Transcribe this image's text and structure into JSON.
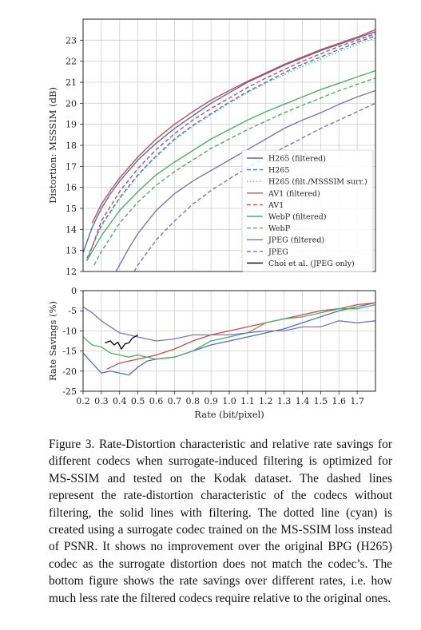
{
  "colors": {
    "H265": "#4c72b0",
    "H265 surr": "#64b5cd",
    "AV1": "#c44e52",
    "WebP": "#55a868",
    "JPEG": "#8172b2",
    "Choi": "#000000"
  },
  "chart_data": [
    {
      "type": "line",
      "ylabel": "Distortion: MSSSIM (dB)",
      "xlim": [
        0.2,
        1.8
      ],
      "ylim": [
        12,
        24
      ],
      "xticks": [
        "0.2",
        "0.3",
        "0.4",
        "0.5",
        "0.6",
        "0.7",
        "0.8",
        "0.9",
        "1.0",
        "1.1",
        "1.2",
        "1.3",
        "1.4",
        "1.5",
        "1.6",
        "1.7"
      ],
      "yticks": [
        "12",
        "13",
        "14",
        "15",
        "16",
        "17",
        "18",
        "19",
        "20",
        "21",
        "22",
        "23"
      ],
      "grid": true,
      "legend_position": "lower-right",
      "series": [
        {
          "name": "H265 (filtered)",
          "codec": "H265",
          "style": "solid",
          "x": [
            0.2,
            0.25,
            0.3,
            0.35,
            0.4,
            0.5,
            0.6,
            0.7,
            0.8,
            0.9,
            1.0,
            1.1,
            1.2,
            1.3,
            1.4,
            1.5,
            1.6,
            1.7,
            1.8
          ],
          "y": [
            12.9,
            14.1,
            15.0,
            15.7,
            16.3,
            17.3,
            18.1,
            18.8,
            19.4,
            20.0,
            20.5,
            21.0,
            21.4,
            21.8,
            22.15,
            22.5,
            22.8,
            23.1,
            23.4
          ]
        },
        {
          "name": "H265",
          "codec": "H265",
          "style": "dashed",
          "x": [
            0.22,
            0.3,
            0.4,
            0.5,
            0.6,
            0.7,
            0.8,
            0.9,
            1.0,
            1.1,
            1.2,
            1.3,
            1.4,
            1.5,
            1.6,
            1.7,
            1.8
          ],
          "y": [
            12.6,
            14.2,
            15.5,
            16.6,
            17.5,
            18.3,
            18.95,
            19.5,
            20.05,
            20.55,
            21.0,
            21.45,
            21.85,
            22.2,
            22.55,
            22.9,
            23.2
          ]
        },
        {
          "name": "H265 (filt./MSSSIM surr.)",
          "codec": "H265 surr",
          "style": "dotted",
          "x": [
            0.22,
            0.3,
            0.4,
            0.5,
            0.6,
            0.7,
            0.8,
            0.9,
            1.0,
            1.1,
            1.2,
            1.3,
            1.4,
            1.5,
            1.6,
            1.7,
            1.8
          ],
          "y": [
            12.6,
            14.15,
            15.45,
            16.55,
            17.45,
            18.25,
            18.9,
            19.45,
            20.0,
            20.5,
            20.95,
            21.35,
            21.75,
            22.1,
            22.45,
            22.8,
            23.1
          ]
        },
        {
          "name": "AV1 (filtered)",
          "codec": "AV1",
          "style": "solid",
          "x": [
            0.25,
            0.3,
            0.35,
            0.4,
            0.5,
            0.6,
            0.7,
            0.8,
            0.9,
            1.0,
            1.1,
            1.2,
            1.3,
            1.4,
            1.5,
            1.6,
            1.7,
            1.8
          ],
          "y": [
            14.3,
            15.2,
            15.85,
            16.45,
            17.45,
            18.3,
            19.0,
            19.6,
            20.15,
            20.6,
            21.05,
            21.45,
            21.85,
            22.2,
            22.55,
            22.85,
            23.15,
            23.5
          ]
        },
        {
          "name": "AV1",
          "codec": "AV1",
          "style": "dashed",
          "x": [
            0.23,
            0.3,
            0.4,
            0.5,
            0.6,
            0.7,
            0.8,
            0.9,
            1.0,
            1.1,
            1.2,
            1.3,
            1.4,
            1.5,
            1.6,
            1.7,
            1.8
          ],
          "y": [
            12.7,
            14.4,
            15.8,
            16.9,
            17.8,
            18.55,
            19.2,
            19.75,
            20.25,
            20.75,
            21.2,
            21.6,
            22.0,
            22.35,
            22.7,
            23.0,
            23.3
          ]
        },
        {
          "name": "WebP (filtered)",
          "codec": "WebP",
          "style": "solid",
          "x": [
            0.22,
            0.3,
            0.4,
            0.5,
            0.6,
            0.7,
            0.8,
            0.9,
            1.0,
            1.1,
            1.2,
            1.3,
            1.4,
            1.5,
            1.6,
            1.7,
            1.8
          ],
          "y": [
            12.5,
            13.7,
            14.9,
            15.8,
            16.6,
            17.2,
            17.75,
            18.3,
            18.75,
            19.2,
            19.6,
            19.95,
            20.3,
            20.65,
            20.95,
            21.25,
            21.55
          ]
        },
        {
          "name": "WebP",
          "codec": "WebP",
          "style": "dashed",
          "x": [
            0.26,
            0.3,
            0.4,
            0.5,
            0.6,
            0.7,
            0.8,
            0.9,
            1.0,
            1.1,
            1.2,
            1.3,
            1.4,
            1.5,
            1.6,
            1.7,
            1.8
          ],
          "y": [
            12.3,
            12.95,
            14.3,
            15.3,
            16.1,
            16.75,
            17.3,
            17.85,
            18.3,
            18.75,
            19.15,
            19.55,
            19.9,
            20.25,
            20.6,
            20.9,
            21.2
          ]
        },
        {
          "name": "JPEG (filtered)",
          "codec": "JPEG",
          "style": "solid",
          "x": [
            0.38,
            0.45,
            0.5,
            0.6,
            0.7,
            0.8,
            0.9,
            1.0,
            1.1,
            1.2,
            1.3,
            1.4,
            1.5,
            1.6,
            1.7,
            1.8
          ],
          "y": [
            12.0,
            13.1,
            13.8,
            14.9,
            15.7,
            16.3,
            16.8,
            17.3,
            17.8,
            18.3,
            18.8,
            19.2,
            19.55,
            19.95,
            20.3,
            20.6
          ]
        },
        {
          "name": "JPEG",
          "codec": "JPEG",
          "style": "dashed",
          "x": [
            0.48,
            0.5,
            0.6,
            0.7,
            0.8,
            0.9,
            1.0,
            1.1,
            1.2,
            1.3,
            1.4,
            1.5,
            1.6,
            1.7,
            1.8
          ],
          "y": [
            12.0,
            12.3,
            13.5,
            14.4,
            15.2,
            15.85,
            16.4,
            16.95,
            17.45,
            17.9,
            18.35,
            18.8,
            19.2,
            19.6,
            20.0
          ]
        },
        {
          "name": "Choi et al. (JPEG only)",
          "codec": "Choi",
          "style": "solid",
          "x": [],
          "y": []
        }
      ]
    },
    {
      "type": "line",
      "ylabel": "Rate Savings (%)",
      "xlabel": "Rate (bit/pixel)",
      "xlim": [
        0.2,
        1.8
      ],
      "ylim": [
        -25,
        0
      ],
      "xticks": [
        "0.2",
        "0.3",
        "0.4",
        "0.5",
        "0.6",
        "0.7",
        "0.8",
        "0.9",
        "1.0",
        "1.1",
        "1.2",
        "1.3",
        "1.4",
        "1.5",
        "1.6",
        "1.7"
      ],
      "yticks": [
        "0",
        "-5",
        "-10",
        "-15",
        "-20",
        "-25"
      ],
      "grid": true,
      "series": [
        {
          "name": "H265",
          "codec": "H265",
          "x": [
            0.2,
            0.25,
            0.3,
            0.35,
            0.4,
            0.45,
            0.5,
            0.55,
            0.6,
            0.7,
            0.8,
            0.9,
            1.0,
            1.1,
            1.2,
            1.3,
            1.4,
            1.5,
            1.6,
            1.7,
            1.8
          ],
          "y": [
            -15.5,
            -18.0,
            -20.5,
            -20.0,
            -20.5,
            -21.0,
            -19.0,
            -17.5,
            -17.0,
            -16.5,
            -15.0,
            -13.5,
            -12.5,
            -11.5,
            -10.5,
            -9.5,
            -8.0,
            -6.5,
            -5.0,
            -4.0,
            -3.0
          ]
        },
        {
          "name": "AV1",
          "codec": "AV1",
          "x": [
            0.33,
            0.4,
            0.45,
            0.5,
            0.55,
            0.6,
            0.7,
            0.8,
            0.9,
            1.0,
            1.1,
            1.2,
            1.3,
            1.4,
            1.5,
            1.6,
            1.7,
            1.8
          ],
          "y": [
            -19.5,
            -18.0,
            -17.5,
            -17.0,
            -16.5,
            -16.0,
            -14.5,
            -12.5,
            -11.0,
            -10.0,
            -9.0,
            -8.0,
            -7.0,
            -6.0,
            -5.0,
            -4.5,
            -3.5,
            -3.0
          ]
        },
        {
          "name": "WebP",
          "codec": "WebP",
          "x": [
            0.2,
            0.25,
            0.3,
            0.35,
            0.4,
            0.45,
            0.5,
            0.55,
            0.6,
            0.7,
            0.8,
            0.9,
            1.0,
            1.1,
            1.2,
            1.3,
            1.4,
            1.5,
            1.6,
            1.7,
            1.8
          ],
          "y": [
            -11.5,
            -13.5,
            -14.0,
            -15.5,
            -16.0,
            -16.5,
            -16.0,
            -16.5,
            -17.0,
            -16.5,
            -15.0,
            -12.5,
            -11.5,
            -10.5,
            -8.0,
            -7.0,
            -6.5,
            -5.5,
            -4.5,
            -4.5,
            -3.5
          ]
        },
        {
          "name": "JPEG",
          "codec": "JPEG",
          "x": [
            0.2,
            0.25,
            0.3,
            0.35,
            0.4,
            0.45,
            0.5,
            0.55,
            0.6,
            0.7,
            0.8,
            0.9,
            1.0,
            1.1,
            1.2,
            1.3,
            1.4,
            1.5,
            1.6,
            1.7,
            1.8
          ],
          "y": [
            -4.0,
            -5.5,
            -7.5,
            -9.0,
            -10.5,
            -11.0,
            -11.5,
            -12.0,
            -12.5,
            -12.0,
            -11.0,
            -11.0,
            -11.0,
            -10.5,
            -10.0,
            -10.0,
            -9.0,
            -9.0,
            -7.5,
            -8.0,
            -7.5
          ]
        },
        {
          "name": "Choi et al.",
          "codec": "Choi",
          "x": [
            0.32,
            0.35,
            0.37,
            0.39,
            0.41,
            0.43,
            0.45,
            0.47,
            0.5
          ],
          "y": [
            -13.0,
            -12.5,
            -13.5,
            -12.8,
            -14.5,
            -13.2,
            -13.0,
            -11.8,
            -11.0
          ]
        }
      ]
    }
  ],
  "caption": "Figure 3. Rate-Distortion characteristic and relative rate savings for different codecs when surrogate-induced filtering is optimized for MS-SSIM and tested on the Kodak dataset. The dashed lines represent the rate-distortion characteristic of the codecs without filtering, the solid lines with filtering. The dotted line (cyan) is created using a surrogate codec trained on the MS-SSIM loss instead of PSNR. It shows no improvement over the original BPG (H265) codec as the surrogate distortion does not match the codec’s. The bottom figure shows the rate savings over different rates, i.e. how much less rate the filtered codecs require relative to the original ones."
}
